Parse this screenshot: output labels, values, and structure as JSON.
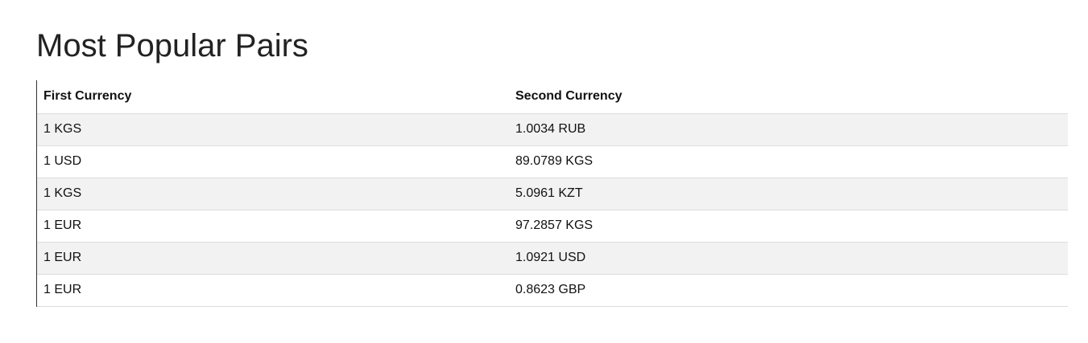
{
  "page": {
    "title": "Most Popular Pairs"
  },
  "table": {
    "headers": {
      "first": "First Currency",
      "second": "Second Currency"
    },
    "rows": [
      {
        "first": "1 KGS",
        "second": "1.0034 RUB"
      },
      {
        "first": "1 USD",
        "second": "89.0789 KGS"
      },
      {
        "first": "1 KGS",
        "second": "5.0961 KZT"
      },
      {
        "first": "1 EUR",
        "second": "97.2857 KGS"
      },
      {
        "first": "1 EUR",
        "second": "1.0921 USD"
      },
      {
        "first": "1 EUR",
        "second": "0.8623 GBP"
      }
    ]
  }
}
